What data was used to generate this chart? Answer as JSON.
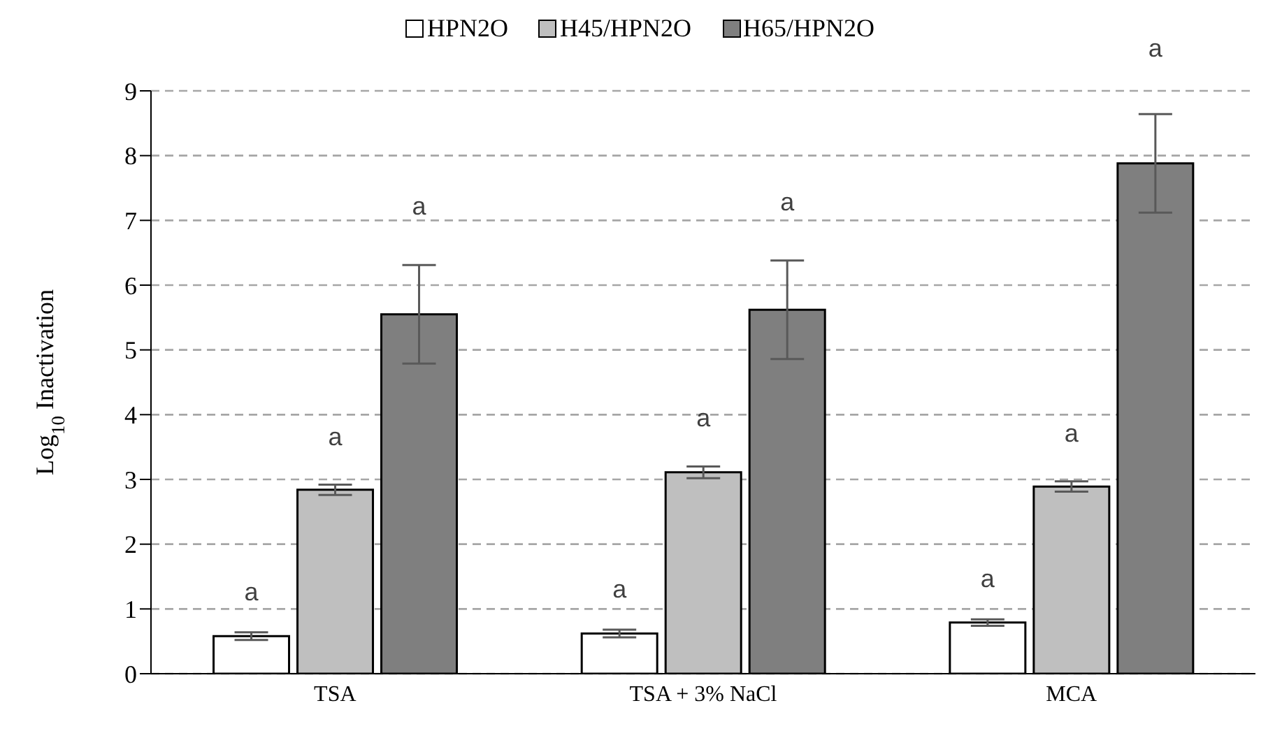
{
  "chart_data": {
    "type": "bar",
    "ylabel": "Log$_{10}$ Inactivation",
    "categories": [
      "TSA",
      "TSA + 3% NaCl",
      "MCA"
    ],
    "series": [
      {
        "name": "HPN2O",
        "color": "#ffffff",
        "values": [
          0.58,
          0.62,
          0.79
        ],
        "errors": [
          0.06,
          0.06,
          0.05
        ]
      },
      {
        "name": "H45/HPN2O",
        "color": "#bfbfbf",
        "values": [
          2.84,
          3.11,
          2.89
        ],
        "errors": [
          0.08,
          0.09,
          0.08
        ]
      },
      {
        "name": "H65/HPN2O",
        "color": "#7f7f7f",
        "values": [
          5.55,
          5.62,
          7.88
        ],
        "errors": [
          0.76,
          0.76,
          0.76
        ]
      }
    ],
    "ylim": [
      0,
      9
    ],
    "yticks": [
      0,
      1,
      2,
      3,
      4,
      5,
      6,
      7,
      8,
      9
    ],
    "grid": "y",
    "legend": "top",
    "annotations": [
      "a",
      "a",
      "a",
      "a",
      "a",
      "a",
      "a",
      "a",
      "a"
    ]
  }
}
